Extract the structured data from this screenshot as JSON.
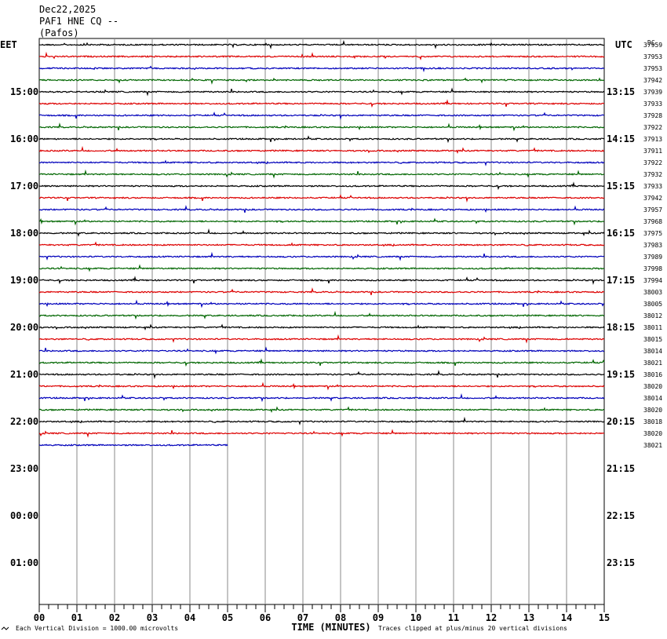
{
  "header": {
    "date": "Dec22,2025",
    "station": "PAF1 HNE CQ --",
    "location": "(Pafos)"
  },
  "chart_data": {
    "type": "line",
    "left_timezone": "EET",
    "right_timezone": "UTC",
    "corner_mark": "DC",
    "left_hour_labels": [
      "15:00",
      "16:00",
      "17:00",
      "18:00",
      "19:00",
      "20:00",
      "21:00",
      "22:00",
      "23:00",
      "00:00",
      "01:00"
    ],
    "right_hour_labels": [
      "13:15",
      "14:15",
      "15:15",
      "16:15",
      "17:15",
      "18:15",
      "19:15",
      "20:15",
      "21:15",
      "22:15",
      "23:15"
    ],
    "x_tick_labels": [
      "00",
      "01",
      "02",
      "03",
      "04",
      "05",
      "06",
      "07",
      "08",
      "09",
      "10",
      "11",
      "12",
      "13",
      "14",
      "15"
    ],
    "xlabel": "TIME (MINUTES)",
    "xlim": [
      0,
      15
    ],
    "trace_colors": [
      "#000000",
      "#dd0000",
      "#0000bb",
      "#006600"
    ],
    "trace_values": [
      "37959",
      "37953",
      "37953",
      "37942",
      "37939",
      "37933",
      "37928",
      "37922",
      "37913",
      "37911",
      "37922",
      "37932",
      "37933",
      "37942",
      "37957",
      "37968",
      "37975",
      "37983",
      "37989",
      "37998",
      "37994",
      "38003",
      "38005",
      "38012",
      "38011",
      "38015",
      "38014",
      "38021",
      "38016",
      "38020",
      "38014",
      "38020",
      "38018",
      "38020",
      "38021"
    ],
    "last_trace_end_minute": 5.0,
    "footer_left": "Each Vertical Division = 1000.00 microvolts",
    "footer_right": "Traces clipped at plus/minus 20 vertical divisions",
    "corner_logo": "usgs-logo"
  }
}
